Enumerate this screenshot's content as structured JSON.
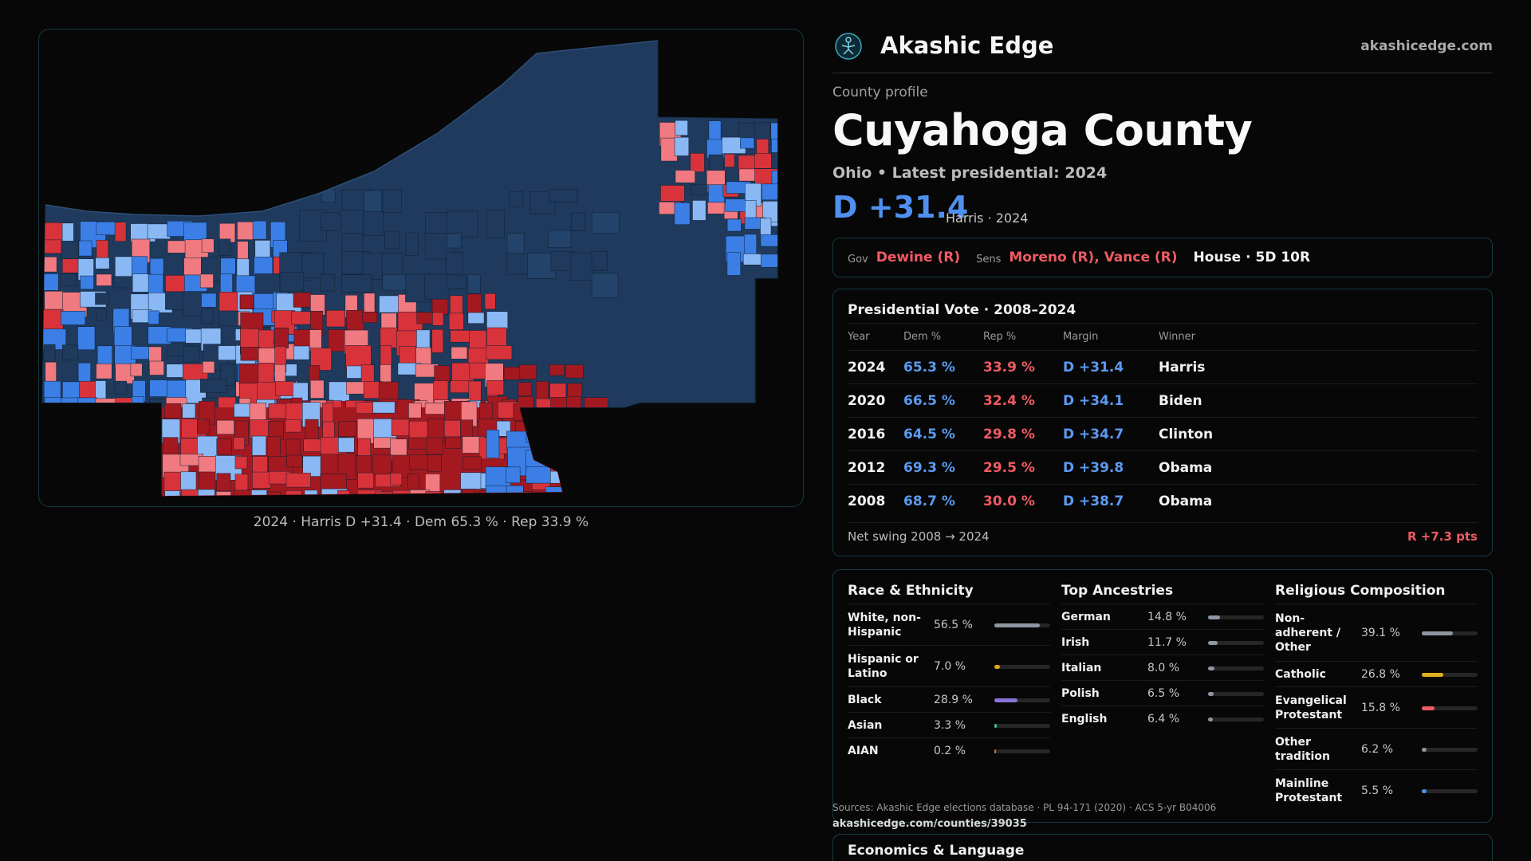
{
  "brand": {
    "name": "Akashic Edge",
    "url": "akashicedge.com"
  },
  "eyebrow": "County profile",
  "county": "Cuyahoga County",
  "subtitle": "Ohio • Latest presidential: 2024",
  "headline": {
    "margin": "D +31.4",
    "detail": "Harris · 2024"
  },
  "officials": {
    "gov_label": "Gov",
    "gov": "Dewine (R)",
    "sens_label": "Sens",
    "sens": "Moreno (R), Vance (R)",
    "house": "House · 5D 10R"
  },
  "presidential": {
    "title": "Presidential Vote · 2008–2024",
    "headers": {
      "year": "Year",
      "dem": "Dem %",
      "rep": "Rep %",
      "margin": "Margin",
      "winner": "Winner"
    },
    "rows": [
      {
        "year": "2024",
        "dem": "65.3 %",
        "rep": "33.9 %",
        "margin": "D +31.4",
        "winner": "Harris"
      },
      {
        "year": "2020",
        "dem": "66.5 %",
        "rep": "32.4 %",
        "margin": "D +34.1",
        "winner": "Biden"
      },
      {
        "year": "2016",
        "dem": "64.5 %",
        "rep": "29.8 %",
        "margin": "D +34.7",
        "winner": "Clinton"
      },
      {
        "year": "2012",
        "dem": "69.3 %",
        "rep": "29.5 %",
        "margin": "D +39.8",
        "winner": "Obama"
      },
      {
        "year": "2008",
        "dem": "68.7 %",
        "rep": "30.0 %",
        "margin": "D +38.7",
        "winner": "Obama"
      }
    ],
    "net_swing_label": "Net swing 2008 → 2024",
    "net_swing_value": "R +7.3 pts"
  },
  "race": {
    "title": "Race & Ethnicity",
    "items": [
      {
        "label": "White, non-Hispanic",
        "pct": "56.5 %",
        "value": 56.5,
        "color": "#8e96a3"
      },
      {
        "label": "Hispanic or Latino",
        "pct": "7.0 %",
        "value": 7.0,
        "color": "#e0a320"
      },
      {
        "label": "Black",
        "pct": "28.9 %",
        "value": 28.9,
        "color": "#8a74d8"
      },
      {
        "label": "Asian",
        "pct": "3.3 %",
        "value": 3.3,
        "color": "#3fbf7f"
      },
      {
        "label": "AIAN",
        "pct": "0.2 %",
        "value": 0.2,
        "color": "#c27a3a"
      }
    ]
  },
  "ancestries": {
    "title": "Top Ancestries",
    "items": [
      {
        "label": "German",
        "pct": "14.8 %",
        "value": 14.8,
        "color": "#8e96a3"
      },
      {
        "label": "Irish",
        "pct": "11.7 %",
        "value": 11.7,
        "color": "#8e96a3"
      },
      {
        "label": "Italian",
        "pct": "8.0 %",
        "value": 8.0,
        "color": "#8e96a3"
      },
      {
        "label": "Polish",
        "pct": "6.5 %",
        "value": 6.5,
        "color": "#8e96a3"
      },
      {
        "label": "English",
        "pct": "6.4 %",
        "value": 6.4,
        "color": "#8e96a3"
      }
    ]
  },
  "religion": {
    "title": "Religious Composition",
    "items": [
      {
        "label": "Non-adherent / Other",
        "pct": "39.1 %",
        "value": 39.1,
        "color": "#8e96a3"
      },
      {
        "label": "Catholic",
        "pct": "26.8 %",
        "value": 26.8,
        "color": "#e0b020"
      },
      {
        "label": "Evangelical Protestant",
        "pct": "15.8 %",
        "value": 15.8,
        "color": "#ef5b63"
      },
      {
        "label": "Other tradition",
        "pct": "6.2 %",
        "value": 6.2,
        "color": "#8e96a3"
      },
      {
        "label": "Mainline Protestant",
        "pct": "5.5 %",
        "value": 5.5,
        "color": "#4f8fef"
      }
    ]
  },
  "sources": "Sources: Akashic Edge elections database · PL 94-171 (2020) · ACS 5-yr B04006",
  "sources_url": "akashicedge.com/counties/39035",
  "economics_title": "Economics & Language",
  "map": {
    "caption": "2024 · Harris D +31.4 · Dem 65.3 % · Rep 33.9 %",
    "colors": {
      "dem_strong": "#1f3a5c",
      "dem_mid": "#3b7fe6",
      "dem_light": "#8ab8f5",
      "rep_strong": "#a3191f",
      "rep_mid": "#d8333a",
      "rep_light": "#f07a80"
    }
  }
}
